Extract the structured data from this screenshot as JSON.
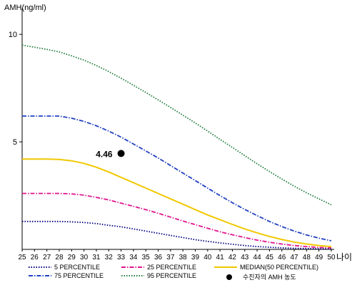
{
  "chart_data": {
    "type": "line",
    "ylabel": "AMH(ng/ml)",
    "xlabel": "나이",
    "x": [
      25,
      26,
      27,
      28,
      29,
      30,
      31,
      32,
      33,
      34,
      35,
      36,
      37,
      38,
      39,
      40,
      41,
      42,
      43,
      44,
      45,
      46,
      47,
      48,
      49,
      50
    ],
    "xlim": [
      25,
      50
    ],
    "ylim": [
      0,
      11
    ],
    "yticks": [
      5,
      10
    ],
    "grid": false,
    "legend_position": "bottom",
    "series": [
      {
        "name": "5 PERCENTILE",
        "color": "#000080",
        "style": "dotted",
        "values": [
          1.3,
          1.3,
          1.3,
          1.3,
          1.28,
          1.25,
          1.2,
          1.12,
          1.05,
          0.95,
          0.85,
          0.75,
          0.65,
          0.55,
          0.45,
          0.37,
          0.3,
          0.24,
          0.18,
          0.13,
          0.1,
          0.07,
          0.05,
          0.04,
          0.03,
          0.03
        ]
      },
      {
        "name": "25 PERCENTILE",
        "color": "#e0148c",
        "style": "dashdot",
        "values": [
          2.6,
          2.6,
          2.6,
          2.6,
          2.58,
          2.52,
          2.42,
          2.3,
          2.15,
          2.0,
          1.85,
          1.68,
          1.5,
          1.32,
          1.15,
          0.98,
          0.82,
          0.68,
          0.55,
          0.43,
          0.33,
          0.25,
          0.18,
          0.13,
          0.09,
          0.07
        ]
      },
      {
        "name": "MEDIAN(50 PERCENTILE)",
        "color": "#f0c800",
        "style": "solid",
        "values": [
          4.2,
          4.2,
          4.2,
          4.18,
          4.12,
          4.0,
          3.82,
          3.6,
          3.35,
          3.1,
          2.85,
          2.6,
          2.35,
          2.1,
          1.85,
          1.6,
          1.38,
          1.16,
          0.95,
          0.77,
          0.6,
          0.46,
          0.34,
          0.25,
          0.18,
          0.13
        ]
      },
      {
        "name": "75 PERCENTILE",
        "color": "#2040c0",
        "style": "dashdot",
        "values": [
          6.2,
          6.2,
          6.2,
          6.2,
          6.1,
          5.95,
          5.75,
          5.5,
          5.22,
          4.9,
          4.58,
          4.25,
          3.9,
          3.55,
          3.2,
          2.85,
          2.5,
          2.17,
          1.86,
          1.57,
          1.3,
          1.06,
          0.85,
          0.67,
          0.52,
          0.4
        ]
      },
      {
        "name": "95 PERCENTILE",
        "color": "#1e7a3a",
        "style": "dotted",
        "values": [
          9.5,
          9.4,
          9.3,
          9.18,
          9.0,
          8.8,
          8.55,
          8.27,
          7.96,
          7.63,
          7.3,
          6.95,
          6.6,
          6.24,
          5.88,
          5.5,
          5.12,
          4.74,
          4.36,
          3.98,
          3.62,
          3.27,
          2.94,
          2.63,
          2.35,
          2.07
        ]
      }
    ],
    "marker": {
      "name": "수진자의 AMH 농도",
      "x": 33,
      "y": 4.46,
      "label": "4.46",
      "color": "#000000"
    }
  }
}
